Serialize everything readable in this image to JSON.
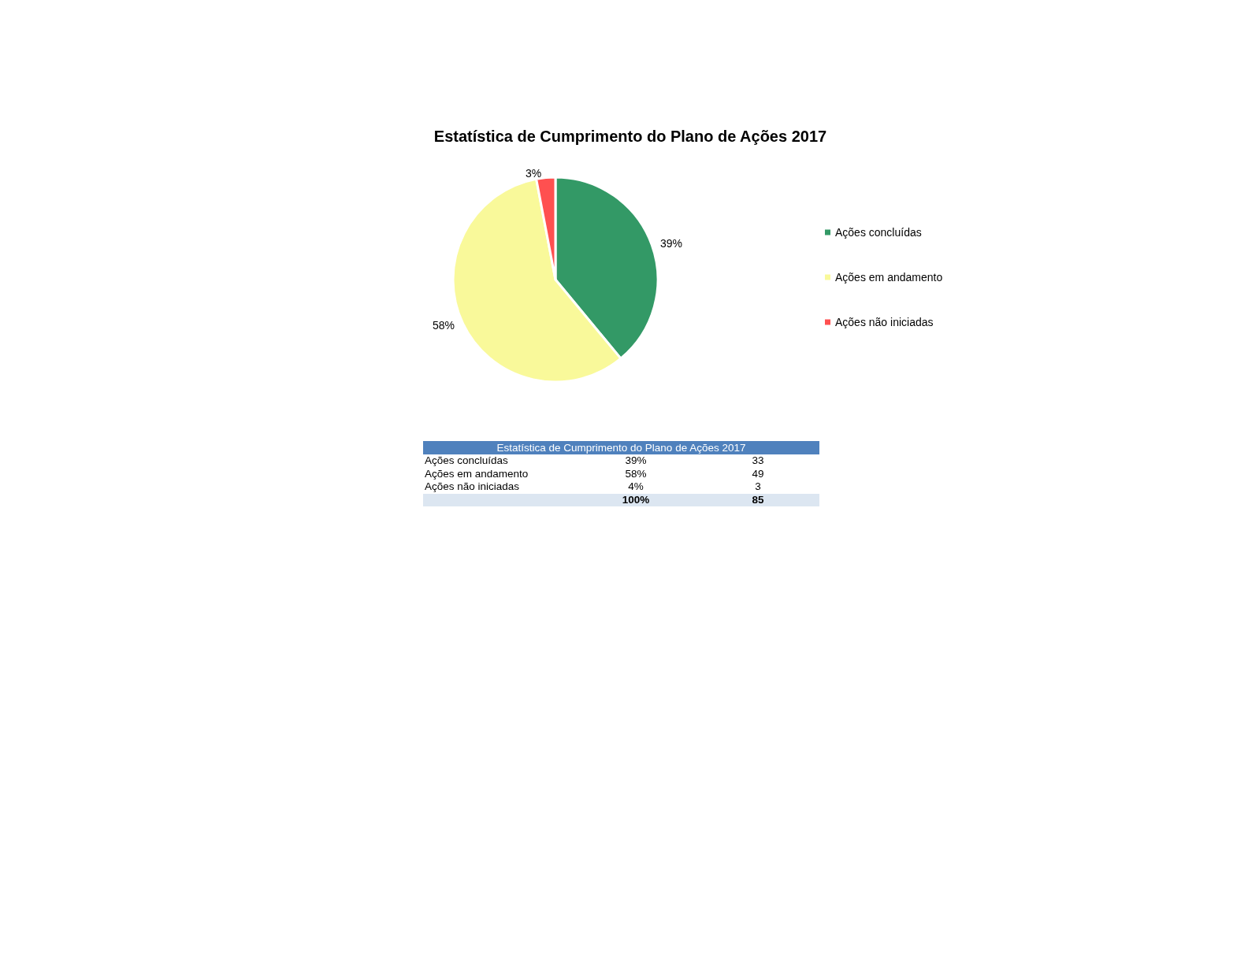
{
  "chart_data": [
    {
      "type": "pie",
      "title": "Estatística de Cumprimento do Plano de Ações 2017",
      "categories": [
        "Ações concluídas",
        "Ações em andamento",
        "Ações não iniciadas"
      ],
      "values": [
        39,
        58,
        3
      ],
      "value_labels": [
        "39%",
        "58%",
        "3%"
      ],
      "colors": [
        "#339966",
        "#f9f99a",
        "#ff5050"
      ],
      "legend": "right"
    },
    {
      "type": "other",
      "title": "Estatística de Cumprimento do Plano de Ações 2017",
      "categories": [
        "Ações concluídas",
        "Ações em andamento",
        "Ações não iniciadas"
      ],
      "series": [
        {
          "values": [
            39,
            58,
            4
          ],
          "value_labels": [
            "39%",
            "58%",
            "4%"
          ]
        },
        {
          "values": [
            33,
            49,
            3
          ]
        }
      ],
      "totals": [
        "100%",
        "85"
      ],
      "data_labels": true
    }
  ]
}
